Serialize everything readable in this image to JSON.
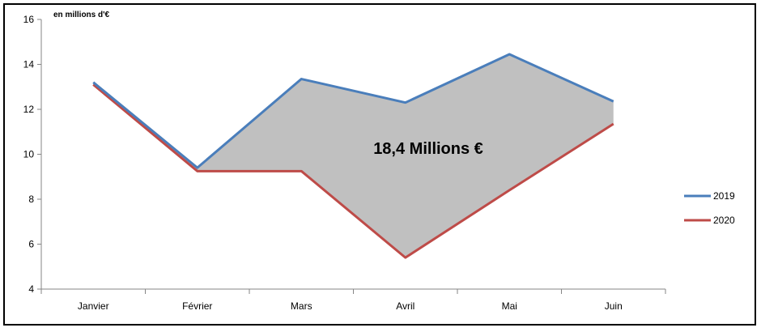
{
  "chart_data": {
    "type": "line",
    "unit_label": "en millions d'€",
    "categories": [
      "Janvier",
      "Février",
      "Mars",
      "Avril",
      "Mai",
      "Juin"
    ],
    "ylim": [
      4,
      16
    ],
    "yticks": [
      4,
      6,
      8,
      10,
      12,
      14,
      16
    ],
    "series": [
      {
        "name": "2019",
        "color": "#4a7ebb",
        "values": [
          13.2,
          9.4,
          13.35,
          12.3,
          14.45,
          12.35
        ]
      },
      {
        "name": "2020",
        "color": "#be4b48",
        "values": [
          13.1,
          9.25,
          9.25,
          5.4,
          8.4,
          11.35
        ]
      }
    ],
    "fill_between": {
      "color": "#c0c0c0"
    },
    "annotation": "18,4 Millions €",
    "legend_position": "right",
    "grid": false
  }
}
